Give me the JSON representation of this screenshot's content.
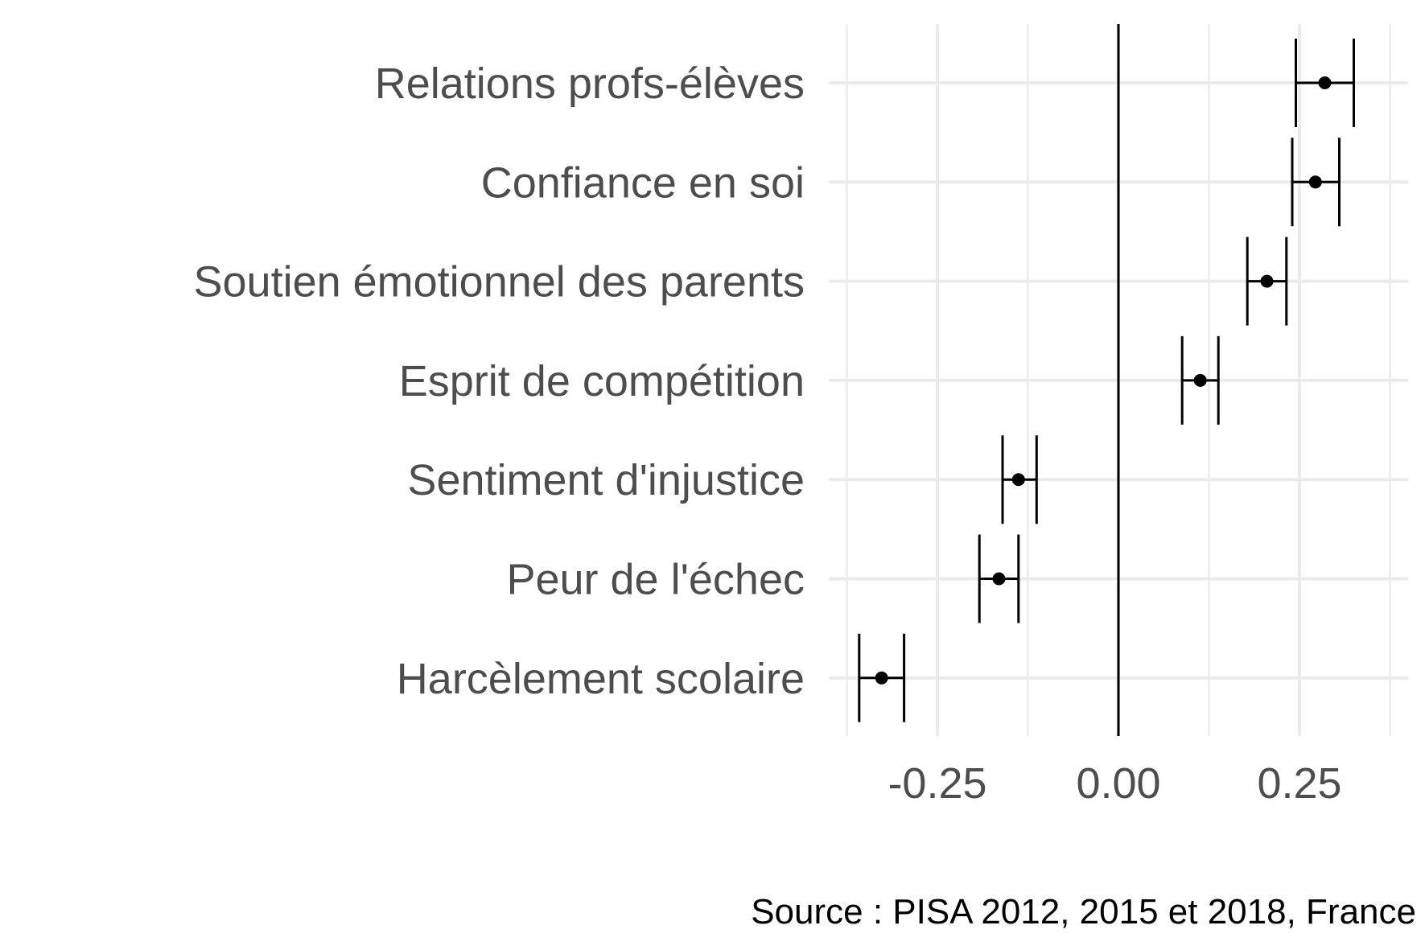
{
  "chart_data": {
    "type": "scatter",
    "title": "",
    "xlabel": "",
    "ylabel": "",
    "xlim": [
      -0.4,
      0.4
    ],
    "x_ticks": [
      -0.25,
      0.0,
      0.25
    ],
    "x_tick_labels": [
      "-0.25",
      "0.00",
      "0.25"
    ],
    "grid": true,
    "reference_line_x": 0,
    "categories": [
      "Relations profs-élèves",
      "Confiance en soi",
      "Soutien émotionnel des parents",
      "Esprit de compétition",
      "Sentiment d'injustice",
      "Peur de l'échec",
      "Harcèlement scolaire"
    ],
    "series": [
      {
        "estimates": [
          0.285,
          0.272,
          0.205,
          0.113,
          -0.138,
          -0.165,
          -0.327
        ],
        "ci_low": [
          0.245,
          0.24,
          0.178,
          0.088,
          -0.16,
          -0.192,
          -0.358
        ],
        "ci_high": [
          0.325,
          0.305,
          0.232,
          0.138,
          -0.113,
          -0.138,
          -0.296
        ]
      }
    ],
    "caption": "Source : PISA 2012, 2015 et 2018, France"
  }
}
